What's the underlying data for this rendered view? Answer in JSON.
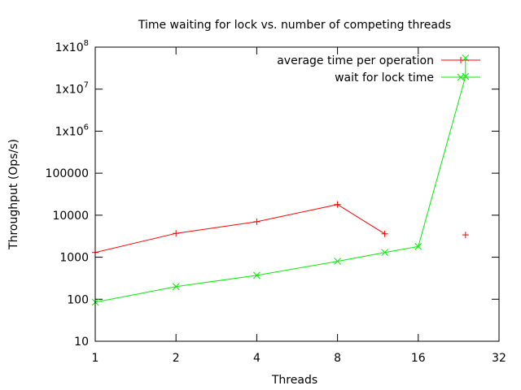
{
  "chart_data": {
    "type": "line",
    "title": "Time waiting for lock vs. number of competing threads",
    "xlabel": "Threads",
    "ylabel": "Throughput (Ops/s)",
    "x_scale": "log2",
    "y_scale": "log10",
    "xlim": [
      1,
      32
    ],
    "ylim": [
      10,
      100000000
    ],
    "x_ticks": [
      {
        "value": 1,
        "label": "1"
      },
      {
        "value": 2,
        "label": "2"
      },
      {
        "value": 4,
        "label": "4"
      },
      {
        "value": 8,
        "label": "8"
      },
      {
        "value": 16,
        "label": "16"
      },
      {
        "value": 32,
        "label": "32"
      }
    ],
    "y_ticks": [
      {
        "value": 10,
        "label": "10"
      },
      {
        "value": 100,
        "label": "100"
      },
      {
        "value": 1000,
        "label": "1000"
      },
      {
        "value": 10000,
        "label": "10000"
      },
      {
        "value": 100000,
        "label": "100000"
      },
      {
        "value": 1000000,
        "label": "1x10",
        "exp": "6"
      },
      {
        "value": 10000000,
        "label": "1x10",
        "exp": "7"
      },
      {
        "value": 100000000,
        "label": "1x10",
        "exp": "8"
      }
    ],
    "grid": false,
    "legend_position": "top-right",
    "series": [
      {
        "name": "average time per operation",
        "color": "#ff0000",
        "marker": "plus",
        "x": [
          1,
          2,
          4,
          8,
          12,
          24
        ],
        "y": [
          1300,
          3700,
          7000,
          18000,
          3600,
          3400
        ],
        "segments": [
          [
            0,
            4
          ],
          [
            5,
            5
          ]
        ]
      },
      {
        "name": "wait for lock time",
        "color": "#00ee00",
        "marker": "cross",
        "x": [
          1,
          2,
          4,
          8,
          12,
          16,
          24,
          24
        ],
        "y": [
          85,
          200,
          370,
          800,
          1300,
          1800,
          20000000,
          55000000
        ],
        "segments": [
          [
            0,
            7
          ]
        ]
      }
    ]
  }
}
